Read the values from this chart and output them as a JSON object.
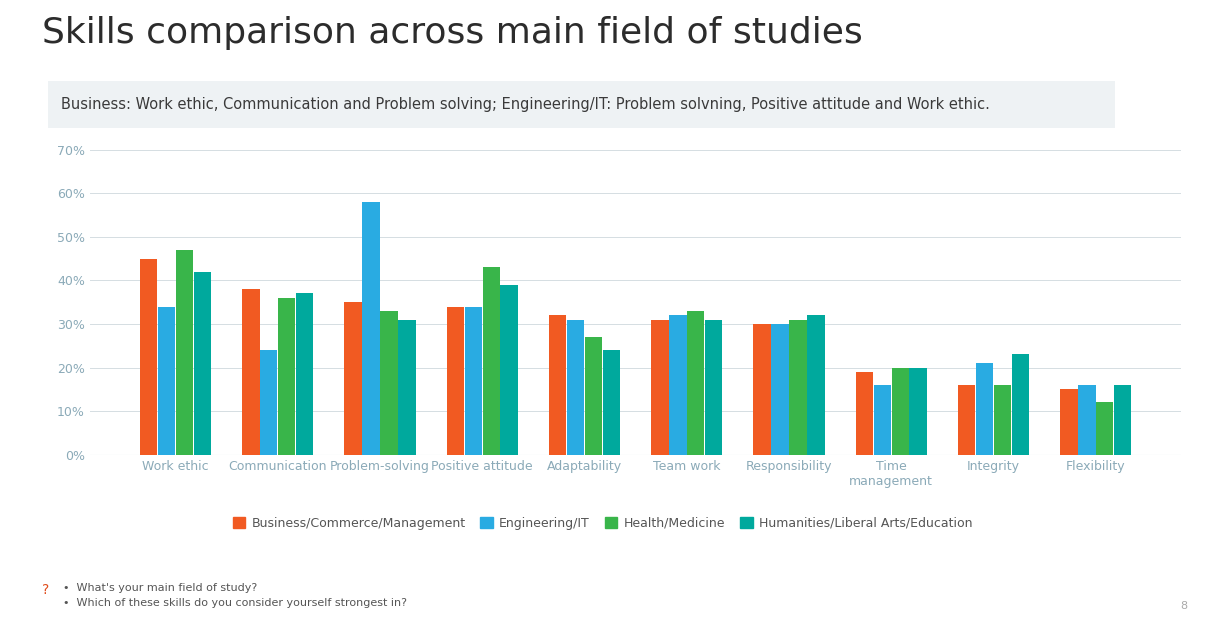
{
  "title": "Skills comparison across main field of studies",
  "subtitle": "Business: Work ethic, Communication and Problem solving; Engineering/IT: Problem solvning, Positive attitude and Work ethic.",
  "categories": [
    "Work ethic",
    "Communication",
    "Problem-solving",
    "Positive attitude",
    "Adaptability",
    "Team work",
    "Responsibility",
    "Time\nmanagement",
    "Integrity",
    "Flexibility"
  ],
  "series": {
    "Business/Commerce/Management": [
      45,
      38,
      35,
      34,
      32,
      31,
      30,
      19,
      16,
      15
    ],
    "Engineering/IT": [
      34,
      24,
      58,
      34,
      31,
      32,
      30,
      16,
      21,
      16
    ],
    "Health/Medicine": [
      47,
      36,
      33,
      43,
      27,
      33,
      31,
      20,
      16,
      12
    ],
    "Humanities/Liberal Arts/Education": [
      42,
      37,
      31,
      39,
      24,
      31,
      32,
      20,
      23,
      16
    ]
  },
  "colors": {
    "Business/Commerce/Management": "#f15a22",
    "Engineering/IT": "#29abe2",
    "Health/Medicine": "#39b54a",
    "Humanities/Liberal Arts/Education": "#00a99d"
  },
  "legend_order": [
    "Business/Commerce/Management",
    "Engineering/IT",
    "Health/Medicine",
    "Humanities/Liberal Arts/Education"
  ],
  "ylim": [
    0,
    70
  ],
  "yticks": [
    0,
    10,
    20,
    30,
    40,
    50,
    60,
    70
  ],
  "ytick_labels": [
    "0%",
    "10%",
    "20%",
    "30%",
    "40%",
    "50%",
    "60%",
    "70%"
  ],
  "background_color": "#ffffff",
  "subtitle_box_color": "#eef2f4",
  "title_fontsize": 26,
  "subtitle_fontsize": 10.5,
  "tick_fontsize": 9,
  "legend_fontsize": 9,
  "axis_label_color": "#8baab8",
  "grid_color": "#d5dde2",
  "title_color": "#2c2c2c",
  "subtitle_text_color": "#3a3a3a",
  "footnote_q_color": "#e04e1e",
  "footnote_text_color": "#555555"
}
